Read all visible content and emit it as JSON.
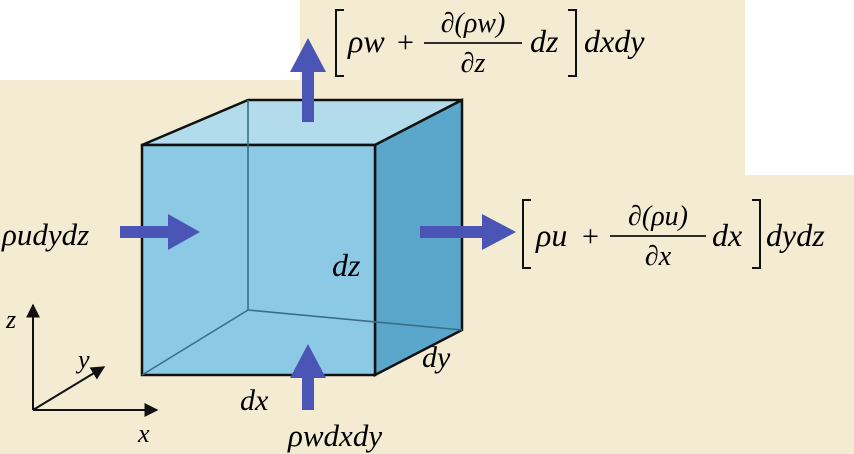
{
  "colors": {
    "background": "#f4ecd2",
    "cube_front": "#8cc9e4",
    "cube_side": "#5aa7cb",
    "cube_top": "#b2dceb",
    "edge": "#111111",
    "arrow": "#4a55b5"
  },
  "labels": {
    "top_flux": {
      "rho_w": "ρw",
      "plus": "+",
      "numerator": "∂(ρw)",
      "denominator": "∂z",
      "dz": "dz",
      "tail": "dxdy"
    },
    "right_flux": {
      "rho_u": "ρu",
      "plus": "+",
      "numerator": "∂(ρu)",
      "denominator": "∂x",
      "dx": "dx",
      "tail": "dydz"
    },
    "left_flux": "ρudydz",
    "bottom_flux": "ρwdxdy",
    "dz": "dz",
    "dx": "dx",
    "dy": "dy",
    "axis_z": "z",
    "axis_y": "y",
    "axis_x": "x"
  }
}
